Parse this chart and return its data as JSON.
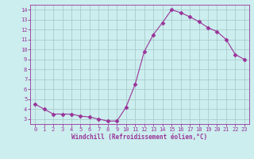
{
  "x": [
    0,
    1,
    2,
    3,
    4,
    5,
    6,
    7,
    8,
    9,
    10,
    11,
    12,
    13,
    14,
    15,
    16,
    17,
    18,
    19,
    20,
    21,
    22,
    23
  ],
  "y": [
    4.5,
    4.0,
    3.5,
    3.5,
    3.5,
    3.3,
    3.2,
    3.0,
    2.8,
    2.8,
    4.2,
    6.5,
    9.8,
    11.5,
    12.7,
    14.0,
    13.7,
    13.3,
    12.8,
    12.2,
    11.8,
    11.0,
    9.5,
    9.0
  ],
  "line_color": "#993399",
  "marker": "D",
  "marker_size": 2.5,
  "bg_color": "#cceeee",
  "grid_color": "#aacccc",
  "xlabel": "Windchill (Refroidissement éolien,°C)",
  "xlabel_color": "#993399",
  "ylim": [
    2.5,
    14.5
  ],
  "xlim": [
    -0.5,
    23.5
  ],
  "yticks": [
    3,
    4,
    5,
    6,
    7,
    8,
    9,
    10,
    11,
    12,
    13,
    14
  ],
  "xticks": [
    0,
    1,
    2,
    3,
    4,
    5,
    6,
    7,
    8,
    9,
    10,
    11,
    12,
    13,
    14,
    15,
    16,
    17,
    18,
    19,
    20,
    21,
    22,
    23
  ],
  "tick_color": "#993399",
  "axis_color": "#993399",
  "font_color": "#993399",
  "tick_fontsize": 5.0,
  "xlabel_fontsize": 5.5
}
